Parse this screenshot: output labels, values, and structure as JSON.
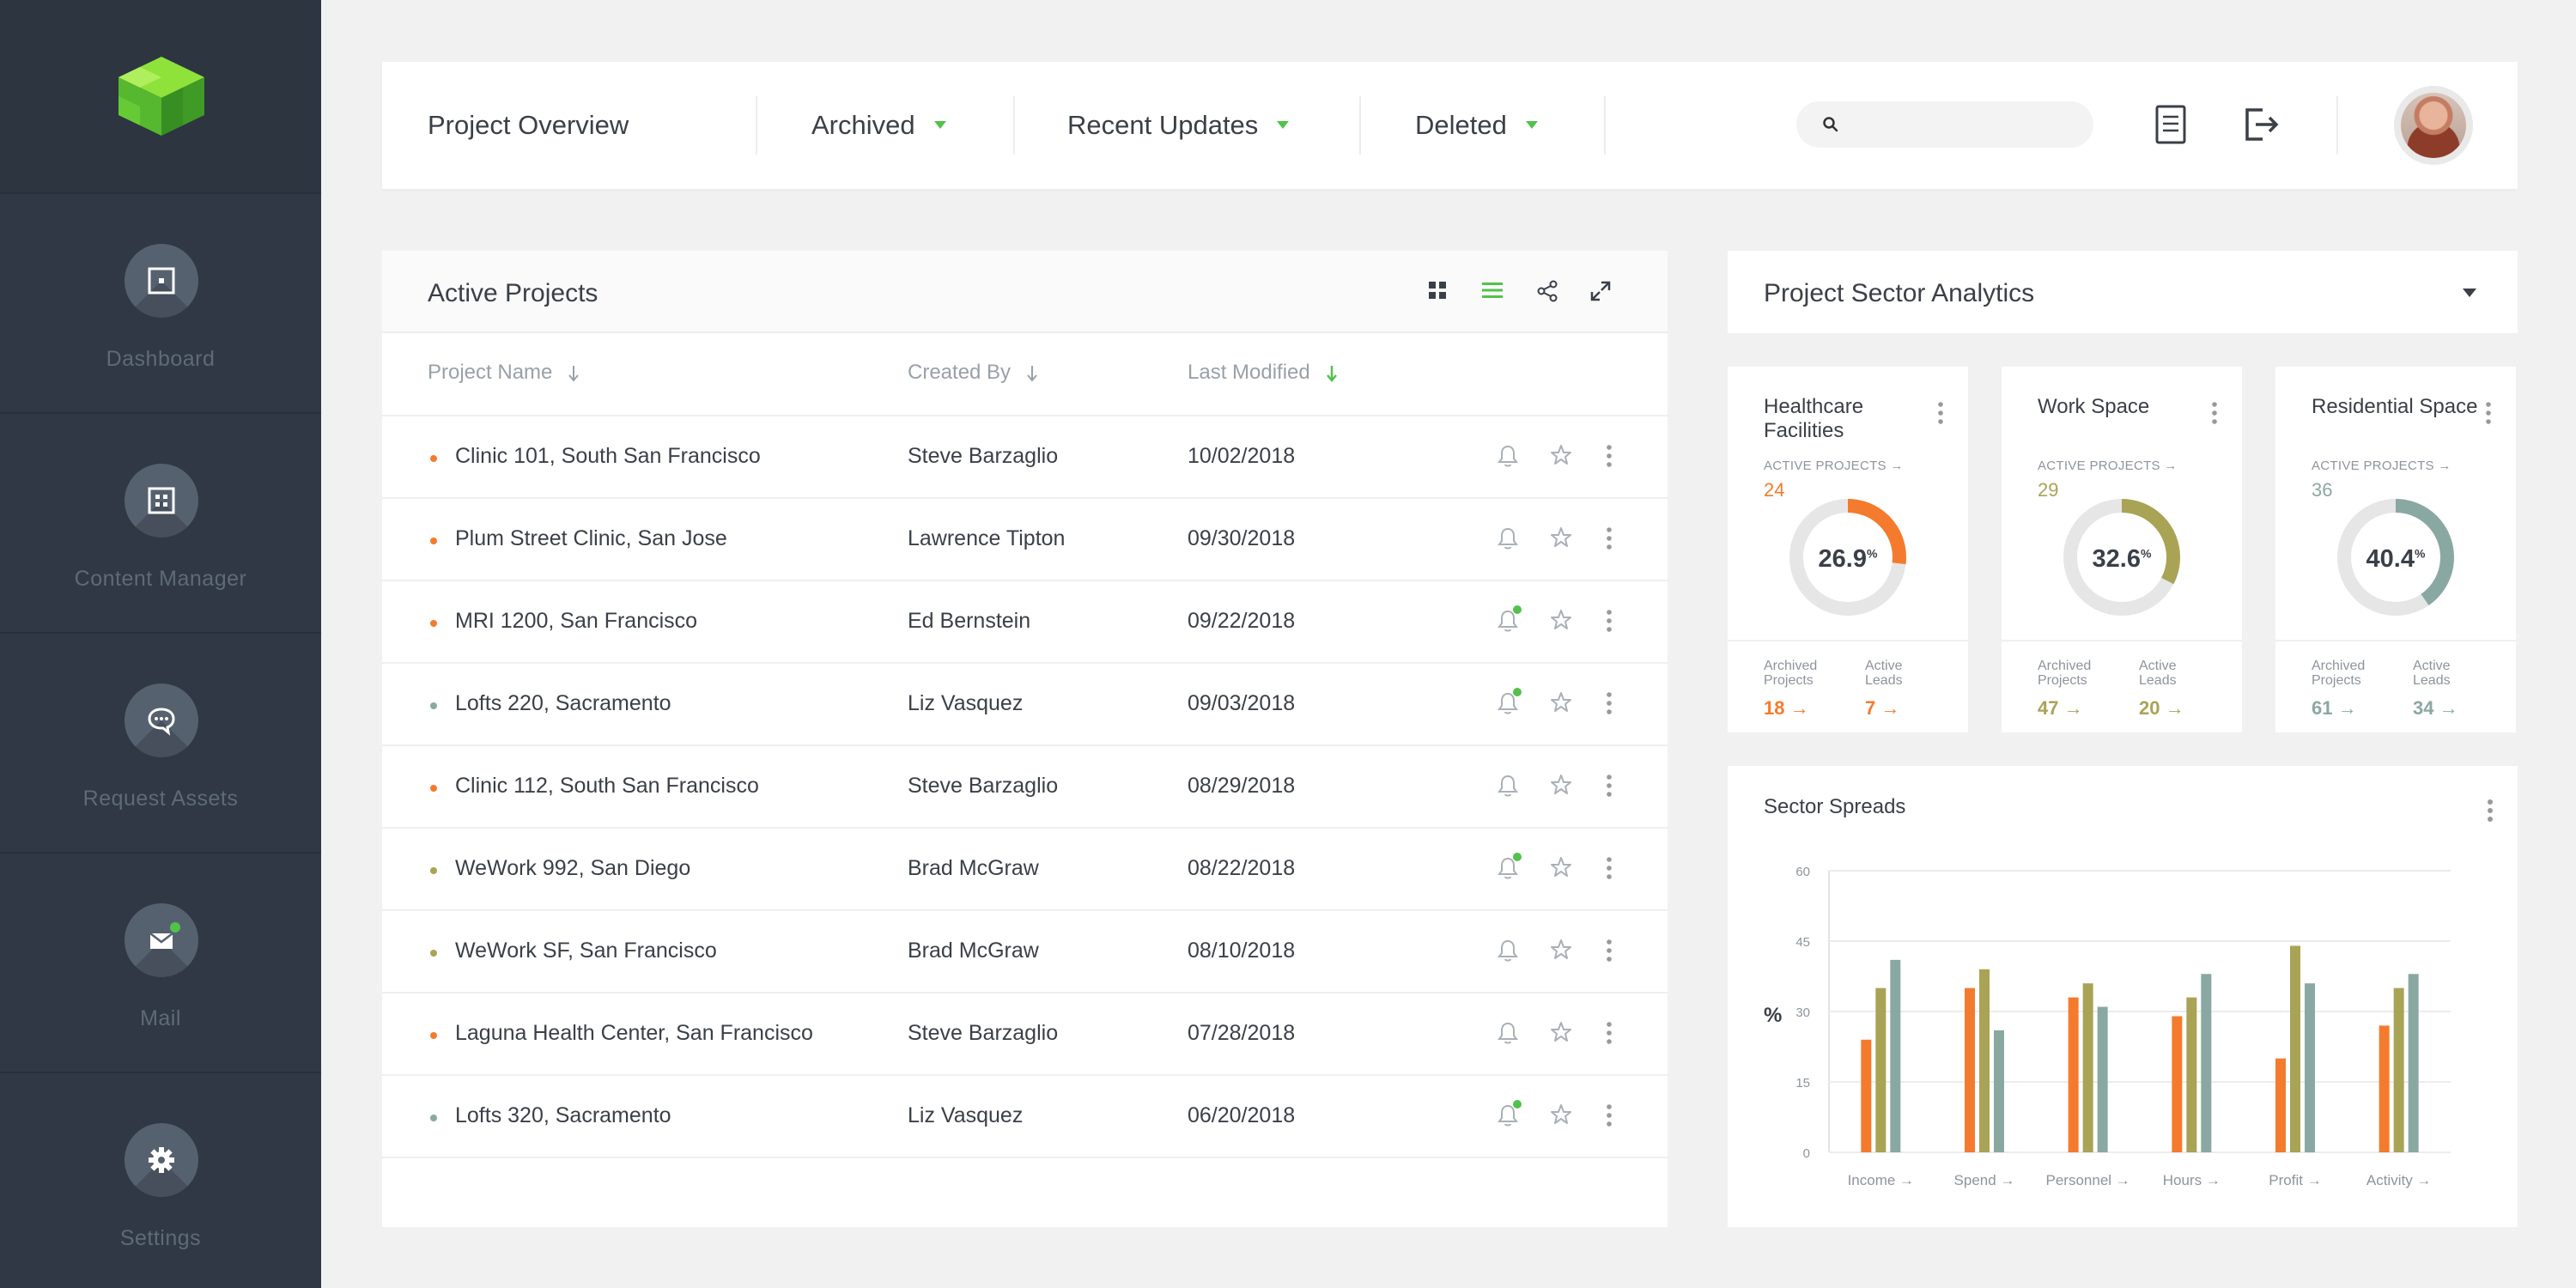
{
  "sidebar": {
    "items": [
      {
        "label": "Dashboard",
        "icon": "dashboard-icon"
      },
      {
        "label": "Content Manager",
        "icon": "content-manager-icon"
      },
      {
        "label": "Request Assets",
        "icon": "chat-bubble-icon"
      },
      {
        "label": "Mail",
        "icon": "envelope-icon"
      },
      {
        "label": "Settings",
        "icon": "gear-icon"
      }
    ]
  },
  "header": {
    "title": "Project Overview",
    "dropdowns": [
      "Archived",
      "Recent Updates",
      "Deleted"
    ],
    "search_placeholder": ""
  },
  "projects": {
    "title": "Active Projects",
    "columns": [
      "Project Name",
      "Created By",
      "Last Modified"
    ],
    "rows": [
      {
        "name": "Clinic 101, South San Francisco",
        "created_by": "Steve Barzaglio",
        "modified": "10/02/2018",
        "color": "#f47b2e",
        "notified": false
      },
      {
        "name": "Plum Street Clinic, San Jose",
        "created_by": "Lawrence Tipton",
        "modified": "09/30/2018",
        "color": "#f47b2e",
        "notified": false
      },
      {
        "name": "MRI 1200, San Francisco",
        "created_by": "Ed Bernstein",
        "modified": "09/22/2018",
        "color": "#f47b2e",
        "notified": true
      },
      {
        "name": "Lofts 220, Sacramento",
        "created_by": "Liz Vasquez",
        "modified": "09/03/2018",
        "color": "#8aa8a2",
        "notified": true
      },
      {
        "name": "Clinic 112, South San Francisco",
        "created_by": "Steve Barzaglio",
        "modified": "08/29/2018",
        "color": "#f47b2e",
        "notified": false
      },
      {
        "name": "WeWork 992, San Diego",
        "created_by": "Brad McGraw",
        "modified": "08/22/2018",
        "color": "#a9a356",
        "notified": true
      },
      {
        "name": "WeWork SF, San Francisco",
        "created_by": "Brad McGraw",
        "modified": "08/10/2018",
        "color": "#a9a356",
        "notified": false
      },
      {
        "name": "Laguna Health Center, San Francisco",
        "created_by": "Steve Barzaglio",
        "modified": "07/28/2018",
        "color": "#f47b2e",
        "notified": false
      },
      {
        "name": "Lofts 320, Sacramento",
        "created_by": "Liz Vasquez",
        "modified": "06/20/2018",
        "color": "#8aa8a2",
        "notified": true
      }
    ]
  },
  "analytics": {
    "title": "Project Sector Analytics",
    "sectors": [
      {
        "title": "Healthcare Facilities",
        "active_label": "ACTIVE PROJECTS →",
        "active": "24",
        "pct": "26.9",
        "pct_sign": "%",
        "pct_value": 26.9,
        "color": "#f47b2e",
        "archived_label": "Archived Projects",
        "archived": "18 →",
        "leads_label": "Active Leads",
        "leads": "7 →"
      },
      {
        "title": "Work Space",
        "active_label": "ACTIVE PROJECTS →",
        "active": "29",
        "pct": "32.6",
        "pct_sign": "%",
        "pct_value": 32.6,
        "color": "#a9a356",
        "archived_label": "Archived Projects",
        "archived": "47 →",
        "leads_label": "Active Leads",
        "leads": "20 →"
      },
      {
        "title": "Residential Space",
        "active_label": "ACTIVE PROJECTS →",
        "active": "36",
        "pct": "40.4",
        "pct_sign": "%",
        "pct_value": 40.4,
        "color": "#8aa8a2",
        "archived_label": "Archived Projects",
        "archived": "61 →",
        "leads_label": "Active Leads",
        "leads": "34 →"
      }
    ]
  },
  "chart_data": {
    "type": "bar",
    "title": "Sector Spreads",
    "ylabel": "%",
    "xlabel": "",
    "ylim": [
      0,
      60
    ],
    "yticks": [
      0,
      15,
      30,
      45,
      60
    ],
    "categories": [
      "Income →",
      "Spend →",
      "Personnel →",
      "Hours →",
      "Profit →",
      "Activity →"
    ],
    "series": [
      {
        "color": "#f47b2e",
        "values": [
          24,
          35,
          33,
          29,
          20,
          27
        ]
      },
      {
        "color": "#a9a356",
        "values": [
          35,
          39,
          36,
          33,
          44,
          35
        ]
      },
      {
        "color": "#8aa8a2",
        "values": [
          41,
          26,
          31,
          38,
          36,
          38
        ]
      }
    ],
    "grid": true
  }
}
